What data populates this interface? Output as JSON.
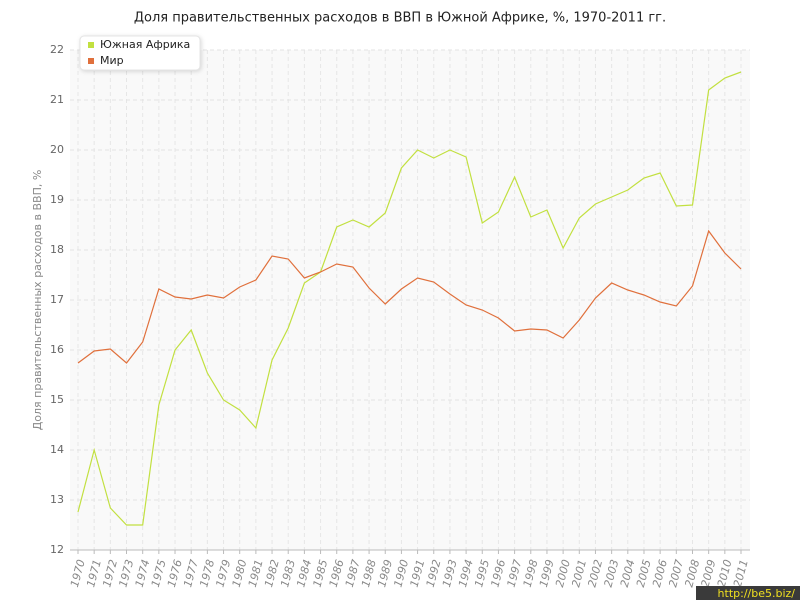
{
  "chart_data": {
    "type": "line",
    "title": "Доля правительственных расходов в ВВП в Южной Африке, %, 1970-2011 гг.",
    "y_label": "Доля правительственных расходов в ВВП, %",
    "categories": [
      "1970",
      "1971",
      "1972",
      "1973",
      "1974",
      "1975",
      "1976",
      "1977",
      "1978",
      "1979",
      "1980",
      "1981",
      "1982",
      "1983",
      "1984",
      "1985",
      "1986",
      "1987",
      "1988",
      "1989",
      "1990",
      "1991",
      "1992",
      "1993",
      "1994",
      "1995",
      "1996",
      "1997",
      "1998",
      "1999",
      "2000",
      "2001",
      "2002",
      "2003",
      "2004",
      "2005",
      "2006",
      "2007",
      "2008",
      "2009",
      "2010",
      "2011"
    ],
    "series": [
      {
        "name": "Южная Африка",
        "color": "#c2e040",
        "values": [
          12.76,
          14.0,
          12.84,
          12.5,
          12.5,
          14.9,
          16.0,
          16.4,
          15.54,
          15.0,
          14.8,
          14.44,
          15.8,
          16.44,
          17.34,
          17.56,
          18.46,
          18.6,
          18.46,
          18.74,
          19.64,
          20.0,
          19.84,
          20.0,
          19.86,
          18.54,
          18.76,
          19.46,
          18.66,
          18.8,
          18.04,
          18.64,
          18.92,
          19.06,
          19.2,
          19.44,
          19.54,
          18.88,
          18.9,
          21.2,
          21.44,
          21.56
        ]
      },
      {
        "name": "Мир",
        "color": "#e0703c",
        "values": [
          15.74,
          15.98,
          16.02,
          15.74,
          16.16,
          17.22,
          17.06,
          17.02,
          17.1,
          17.04,
          17.26,
          17.4,
          17.88,
          17.82,
          17.44,
          17.56,
          17.72,
          17.66,
          17.24,
          16.92,
          17.22,
          17.44,
          17.36,
          17.12,
          16.9,
          16.8,
          16.64,
          16.38,
          16.42,
          16.4,
          16.24,
          16.6,
          17.04,
          17.34,
          17.2,
          17.1,
          16.96,
          16.88,
          17.28,
          18.38,
          17.94,
          17.62
        ]
      }
    ],
    "ylim": [
      12,
      22
    ],
    "yticks": [
      12,
      13,
      14,
      15,
      16,
      17,
      18,
      19,
      20,
      21,
      22
    ],
    "grid": true,
    "legend": "top-left",
    "watermark": "http://be5.biz/"
  }
}
